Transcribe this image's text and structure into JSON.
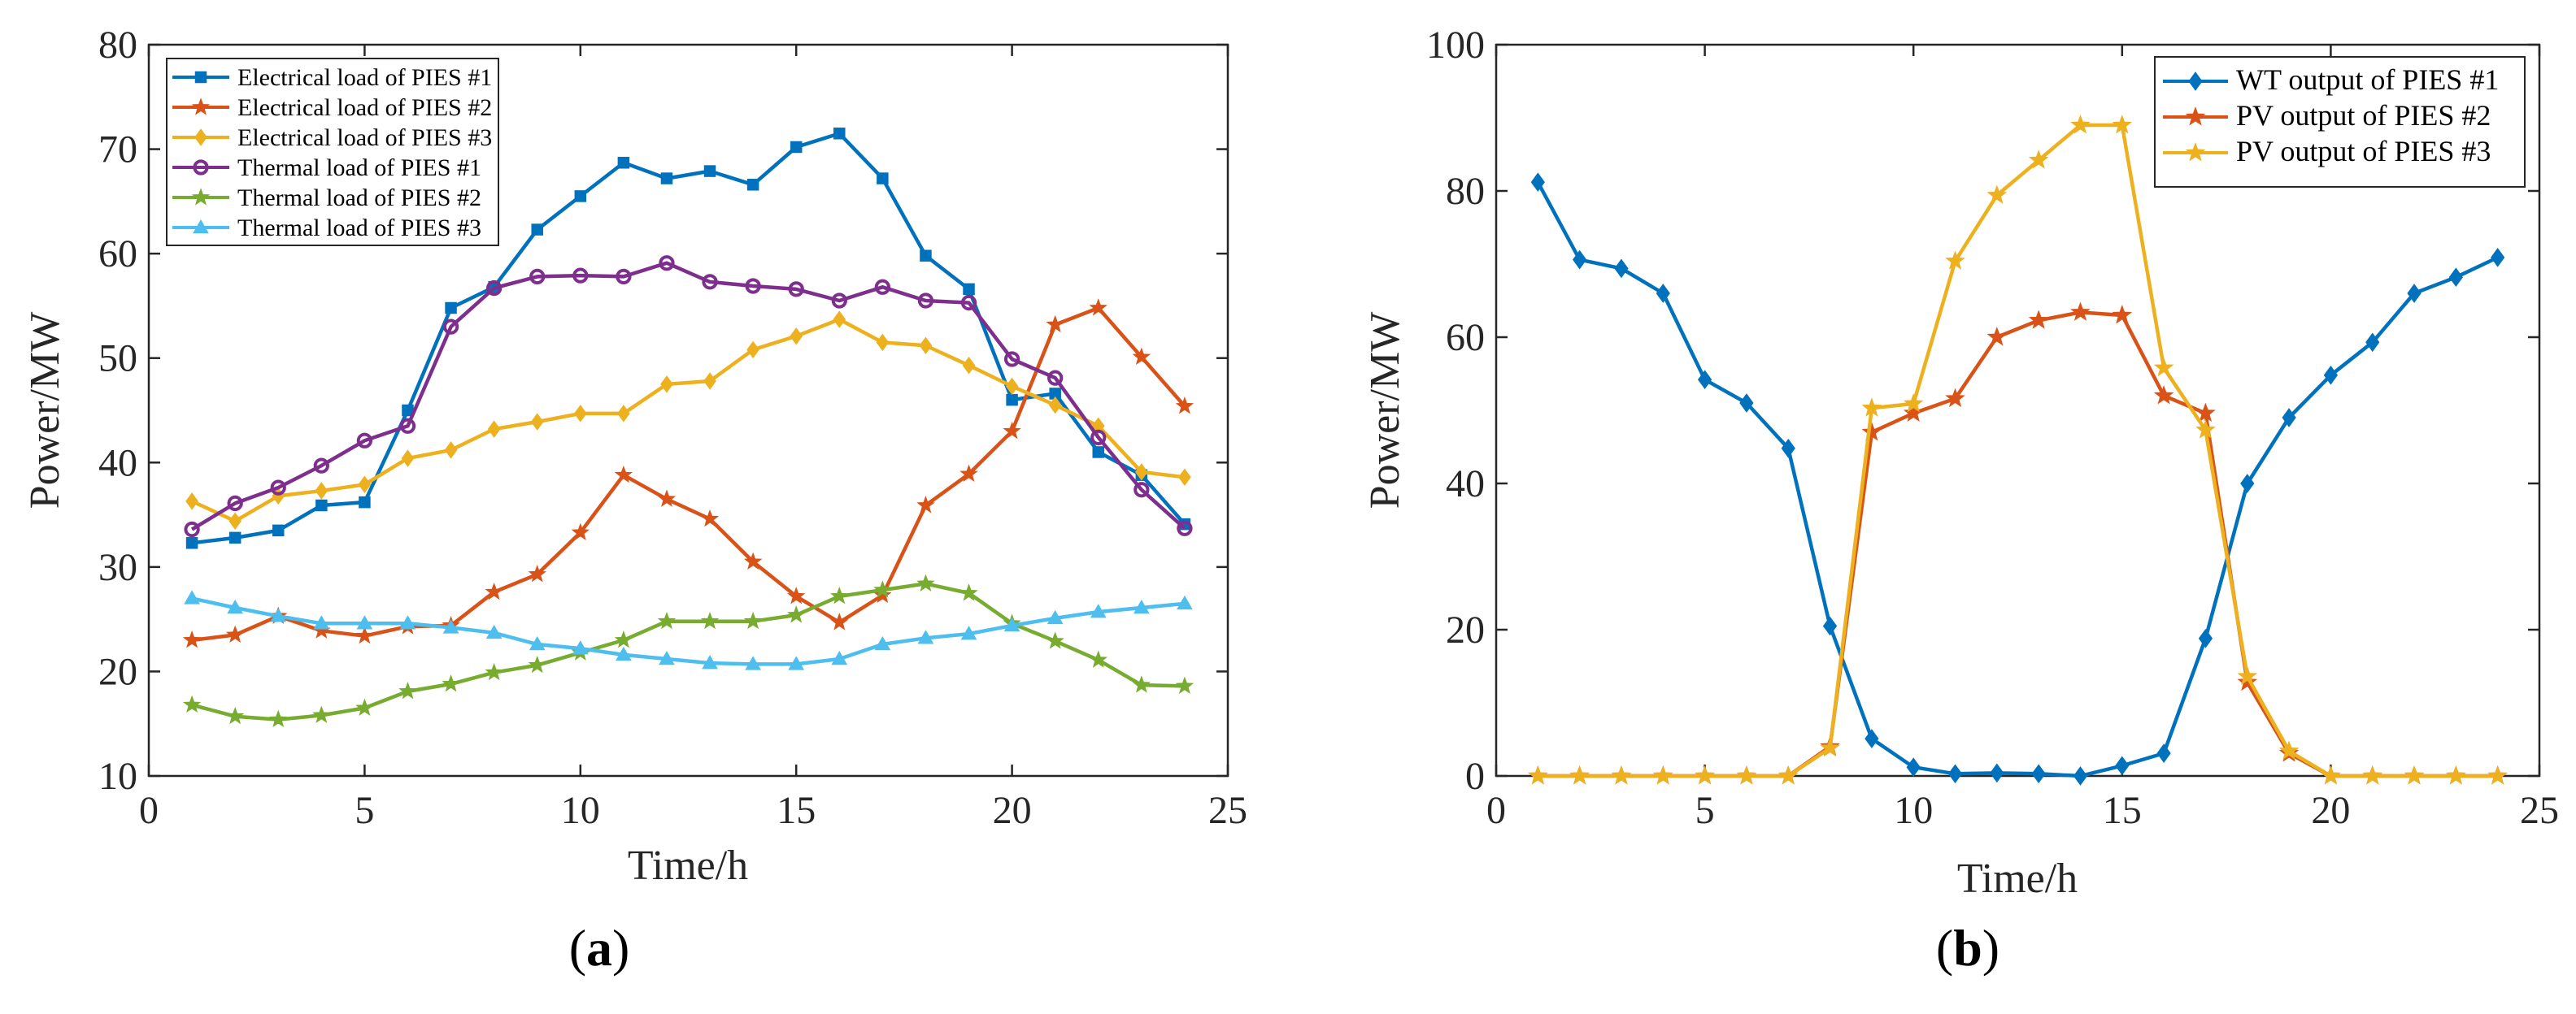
{
  "chart_data": [
    {
      "type": "line",
      "panel": "a",
      "caption": "(a)",
      "caption_letter": "a",
      "xlabel": "Time/h",
      "ylabel": "Power/MW",
      "xlim": [
        0,
        25
      ],
      "ylim": [
        10,
        80
      ],
      "xticks": [
        0,
        5,
        10,
        15,
        20,
        25
      ],
      "yticks": [
        10,
        20,
        30,
        40,
        50,
        60,
        70,
        80
      ],
      "legend_position": "top-left",
      "x": [
        1,
        2,
        3,
        4,
        5,
        6,
        7,
        8,
        9,
        10,
        11,
        12,
        13,
        14,
        15,
        16,
        17,
        18,
        19,
        20,
        21,
        22,
        23,
        24
      ],
      "series": [
        {
          "name": "Electrical load of PIES #1",
          "color": "#0072BD",
          "marker": "square",
          "values": [
            32.3,
            32.8,
            33.5,
            35.9,
            36.2,
            45.0,
            54.8,
            56.8,
            62.3,
            65.5,
            68.7,
            67.2,
            67.9,
            66.6,
            70.2,
            71.5,
            67.2,
            59.8,
            56.6,
            46.0,
            46.6,
            41.0,
            38.8,
            34.1
          ]
        },
        {
          "name": "Electrical load of PIES #2",
          "color": "#D95319",
          "marker": "star",
          "values": [
            23.0,
            23.5,
            25.3,
            23.9,
            23.4,
            24.3,
            24.4,
            27.6,
            29.3,
            33.3,
            38.8,
            36.5,
            34.6,
            30.5,
            27.2,
            24.7,
            27.3,
            35.9,
            38.9,
            43.0,
            53.2,
            54.8,
            50.1,
            45.4
          ]
        },
        {
          "name": "Electrical load of PIES #3",
          "color": "#EDB120",
          "marker": "diamond",
          "values": [
            36.3,
            34.4,
            36.8,
            37.3,
            37.9,
            40.4,
            41.2,
            43.2,
            43.9,
            44.7,
            44.7,
            47.5,
            47.8,
            50.8,
            52.1,
            53.7,
            51.5,
            51.2,
            49.3,
            47.3,
            45.5,
            43.5,
            39.1,
            38.6
          ]
        },
        {
          "name": "Thermal load of PIES #1",
          "color": "#7E2F8E",
          "marker": "circle",
          "values": [
            33.6,
            36.1,
            37.6,
            39.7,
            42.1,
            43.5,
            53.0,
            56.7,
            57.8,
            57.9,
            57.8,
            59.1,
            57.3,
            56.9,
            56.6,
            55.5,
            56.8,
            55.5,
            55.3,
            49.9,
            48.1,
            42.4,
            37.4,
            33.7
          ]
        },
        {
          "name": "Thermal load of PIES #2",
          "color": "#77AC30",
          "marker": "star",
          "values": [
            16.8,
            15.7,
            15.4,
            15.8,
            16.5,
            18.1,
            18.8,
            19.9,
            20.6,
            21.8,
            23.0,
            24.8,
            24.8,
            24.8,
            25.4,
            27.2,
            27.8,
            28.4,
            27.5,
            24.6,
            22.9,
            21.1,
            18.7,
            18.6
          ]
        },
        {
          "name": "Thermal load of PIES #3",
          "color": "#4DBEEE",
          "marker": "triangle",
          "values": [
            27.0,
            26.1,
            25.3,
            24.6,
            24.6,
            24.6,
            24.2,
            23.7,
            22.6,
            22.2,
            21.6,
            21.2,
            20.8,
            20.7,
            20.7,
            21.2,
            22.6,
            23.2,
            23.6,
            24.4,
            25.1,
            25.7,
            26.1,
            26.5
          ]
        }
      ]
    },
    {
      "type": "line",
      "panel": "b",
      "caption": "(b)",
      "caption_letter": "b",
      "xlabel": "Time/h",
      "ylabel": "Power/MW",
      "xlim": [
        0,
        25
      ],
      "ylim": [
        0,
        100
      ],
      "xticks": [
        0,
        5,
        10,
        15,
        20,
        25
      ],
      "yticks": [
        0,
        20,
        40,
        60,
        80,
        100
      ],
      "legend_position": "top-right",
      "x": [
        1,
        2,
        3,
        4,
        5,
        6,
        7,
        8,
        9,
        10,
        11,
        12,
        13,
        14,
        15,
        16,
        17,
        18,
        19,
        20,
        21,
        22,
        23,
        24
      ],
      "series": [
        {
          "name": "WT output of PIES #1",
          "color": "#0072BD",
          "marker": "diamond",
          "values": [
            81.2,
            70.6,
            69.4,
            66.0,
            54.2,
            51.0,
            44.8,
            20.5,
            5.1,
            1.2,
            0.3,
            0.4,
            0.3,
            0.0,
            1.4,
            3.1,
            18.8,
            40.0,
            49.0,
            54.8,
            59.3,
            66.0,
            68.2,
            70.9
          ]
        },
        {
          "name": "PV output of PIES #2",
          "color": "#D95319",
          "marker": "star",
          "values": [
            0,
            0,
            0,
            0,
            0,
            0,
            0,
            4.0,
            47.0,
            49.6,
            51.6,
            60.0,
            62.3,
            63.4,
            63.0,
            52.0,
            49.6,
            12.8,
            3.1,
            0,
            0,
            0,
            0,
            0
          ]
        },
        {
          "name": "PV output of PIES #3",
          "color": "#EDB120",
          "marker": "star",
          "values": [
            0,
            0,
            0,
            0,
            0,
            0,
            0,
            3.8,
            50.3,
            50.9,
            70.4,
            79.4,
            84.2,
            89.0,
            89.0,
            55.8,
            47.3,
            13.6,
            3.4,
            0,
            0,
            0,
            0,
            0
          ]
        }
      ]
    }
  ]
}
